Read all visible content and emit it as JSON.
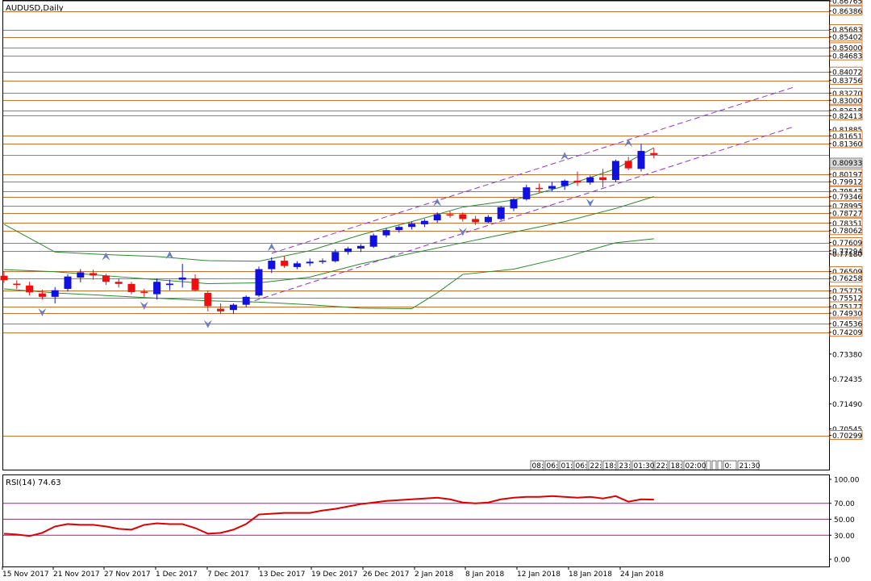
{
  "window": {
    "title": "AUDUSD,Daily"
  },
  "colors": {
    "bull": "#1010e0",
    "bear": "#ee1010",
    "level": "#c87030",
    "channel": "#9933cc",
    "bands": "#2a8a2a",
    "rsi": "#dd0000",
    "rsi_levels": "#ee10c0"
  },
  "time_markers": [
    "08:",
    "06:",
    "01:",
    "06:",
    "22:",
    "18:",
    "23:",
    "01:30",
    "22:",
    "18:",
    "02:00",
    "",
    "",
    "",
    "0:",
    "21:30"
  ],
  "chart_data": [
    {
      "type": "candlestick",
      "title": "AUDUSD,Daily",
      "y_range": [
        0.69,
        0.8677
      ],
      "x_labels": [
        "15 Nov 2017",
        "21 Nov 2017",
        "27 Nov 2017",
        "1 Dec 2017",
        "7 Dec 2017",
        "13 Dec 2017",
        "19 Dec 2017",
        "26 Dec 2017",
        "2 Jan 2018",
        "8 Jan 2018",
        "12 Jan 2018",
        "18 Jan 2018",
        "24 Jan 2018"
      ],
      "price_labels": [
        "0.86765",
        "0.86386",
        "0.85683",
        "0.85402",
        "0.85000",
        "0.84683",
        "0.84072",
        "0.83756",
        "0.83270",
        "0.83000",
        "0.82618",
        "0.82413",
        "0.81885",
        "0.81651",
        "0.81360",
        "0.80197",
        "0.79912",
        "0.79547",
        "0.79346",
        "0.78995",
        "0.78727",
        "0.78351",
        "0.78062",
        "0.77609",
        "0.77294",
        "0.77180",
        "0.76509",
        "0.76258",
        "0.75775",
        "0.75512",
        "0.75177",
        "0.74930",
        "0.74536",
        "0.74209",
        "0.73380",
        "0.72435",
        "0.71490",
        "0.70545",
        "0.70299"
      ],
      "level_values": [
        0.86765,
        0.86386,
        0.85683,
        0.85402,
        0.85,
        0.84683,
        0.84072,
        0.83756,
        0.8327,
        0.83,
        0.82618,
        0.82413,
        0.81651,
        0.8136,
        0.80197,
        0.79912,
        0.79547,
        0.79346,
        0.78995,
        0.78727,
        0.78351,
        0.78062,
        0.77609,
        0.77294,
        0.76509,
        0.76258,
        0.75775,
        0.75512,
        0.75177,
        0.7493,
        0.74536,
        0.74209,
        0.70299
      ],
      "current_price": "0.80933",
      "current_value": 0.80933,
      "candles": [
        {
          "o": 0.7635,
          "h": 0.7652,
          "l": 0.7608,
          "c": 0.7618
        },
        {
          "o": 0.7605,
          "h": 0.7618,
          "l": 0.7585,
          "c": 0.7602
        },
        {
          "o": 0.7598,
          "h": 0.7612,
          "l": 0.756,
          "c": 0.7572
        },
        {
          "o": 0.7568,
          "h": 0.7582,
          "l": 0.7545,
          "c": 0.7555
        },
        {
          "o": 0.7555,
          "h": 0.7592,
          "l": 0.753,
          "c": 0.758
        },
        {
          "o": 0.7585,
          "h": 0.764,
          "l": 0.7575,
          "c": 0.7632
        },
        {
          "o": 0.7628,
          "h": 0.766,
          "l": 0.761,
          "c": 0.7648
        },
        {
          "o": 0.7645,
          "h": 0.7658,
          "l": 0.762,
          "c": 0.7636
        },
        {
          "o": 0.7636,
          "h": 0.7642,
          "l": 0.76,
          "c": 0.7612
        },
        {
          "o": 0.7612,
          "h": 0.7625,
          "l": 0.759,
          "c": 0.7604
        },
        {
          "o": 0.7604,
          "h": 0.7612,
          "l": 0.7565,
          "c": 0.7573
        },
        {
          "o": 0.7575,
          "h": 0.7585,
          "l": 0.7555,
          "c": 0.757
        },
        {
          "o": 0.7565,
          "h": 0.7625,
          "l": 0.7545,
          "c": 0.7612
        },
        {
          "o": 0.76,
          "h": 0.762,
          "l": 0.758,
          "c": 0.7605
        },
        {
          "o": 0.762,
          "h": 0.768,
          "l": 0.759,
          "c": 0.7628
        },
        {
          "o": 0.7625,
          "h": 0.764,
          "l": 0.7575,
          "c": 0.758
        },
        {
          "o": 0.757,
          "h": 0.758,
          "l": 0.75,
          "c": 0.752
        },
        {
          "o": 0.751,
          "h": 0.753,
          "l": 0.749,
          "c": 0.75
        },
        {
          "o": 0.7505,
          "h": 0.753,
          "l": 0.749,
          "c": 0.7525
        },
        {
          "o": 0.7525,
          "h": 0.756,
          "l": 0.7515,
          "c": 0.7555
        },
        {
          "o": 0.756,
          "h": 0.767,
          "l": 0.7555,
          "c": 0.766
        },
        {
          "o": 0.766,
          "h": 0.7705,
          "l": 0.7645,
          "c": 0.7692
        },
        {
          "o": 0.7692,
          "h": 0.771,
          "l": 0.7665,
          "c": 0.7672
        },
        {
          "o": 0.7668,
          "h": 0.769,
          "l": 0.766,
          "c": 0.7682
        },
        {
          "o": 0.7682,
          "h": 0.77,
          "l": 0.7672,
          "c": 0.7688
        },
        {
          "o": 0.7688,
          "h": 0.77,
          "l": 0.768,
          "c": 0.7692
        },
        {
          "o": 0.769,
          "h": 0.7735,
          "l": 0.7685,
          "c": 0.7725
        },
        {
          "o": 0.7725,
          "h": 0.7745,
          "l": 0.7715,
          "c": 0.7738
        },
        {
          "o": 0.7738,
          "h": 0.7755,
          "l": 0.7725,
          "c": 0.7748
        },
        {
          "o": 0.7745,
          "h": 0.7795,
          "l": 0.774,
          "c": 0.7788
        },
        {
          "o": 0.7788,
          "h": 0.7815,
          "l": 0.778,
          "c": 0.7808
        },
        {
          "o": 0.7808,
          "h": 0.7825,
          "l": 0.7798,
          "c": 0.782
        },
        {
          "o": 0.782,
          "h": 0.784,
          "l": 0.781,
          "c": 0.7832
        },
        {
          "o": 0.783,
          "h": 0.785,
          "l": 0.782,
          "c": 0.7843
        },
        {
          "o": 0.7845,
          "h": 0.7875,
          "l": 0.7835,
          "c": 0.7868
        },
        {
          "o": 0.7868,
          "h": 0.788,
          "l": 0.7855,
          "c": 0.7864
        },
        {
          "o": 0.7868,
          "h": 0.7875,
          "l": 0.784,
          "c": 0.785
        },
        {
          "o": 0.785,
          "h": 0.7862,
          "l": 0.7828,
          "c": 0.7838
        },
        {
          "o": 0.7838,
          "h": 0.7865,
          "l": 0.7835,
          "c": 0.7858
        },
        {
          "o": 0.785,
          "h": 0.79,
          "l": 0.7845,
          "c": 0.7895
        },
        {
          "o": 0.789,
          "h": 0.793,
          "l": 0.788,
          "c": 0.7925
        },
        {
          "o": 0.7925,
          "h": 0.798,
          "l": 0.792,
          "c": 0.797
        },
        {
          "o": 0.7968,
          "h": 0.7985,
          "l": 0.795,
          "c": 0.7965
        },
        {
          "o": 0.7965,
          "h": 0.799,
          "l": 0.7955,
          "c": 0.7975
        },
        {
          "o": 0.7975,
          "h": 0.8,
          "l": 0.796,
          "c": 0.7995
        },
        {
          "o": 0.7995,
          "h": 0.803,
          "l": 0.7975,
          "c": 0.7988
        },
        {
          "o": 0.7988,
          "h": 0.8015,
          "l": 0.798,
          "c": 0.8008
        },
        {
          "o": 0.8008,
          "h": 0.804,
          "l": 0.797,
          "c": 0.7998
        },
        {
          "o": 0.7998,
          "h": 0.8075,
          "l": 0.799,
          "c": 0.807
        },
        {
          "o": 0.807,
          "h": 0.8085,
          "l": 0.8035,
          "c": 0.8042
        },
        {
          "o": 0.804,
          "h": 0.8135,
          "l": 0.803,
          "c": 0.8108
        },
        {
          "o": 0.81,
          "h": 0.8118,
          "l": 0.808,
          "c": 0.8093
        }
      ],
      "bands": {
        "upper": [
          [
            0,
            0.783
          ],
          [
            4,
            0.7725
          ],
          [
            8,
            0.7715
          ],
          [
            12,
            0.7708
          ],
          [
            16,
            0.7692
          ],
          [
            20,
            0.769
          ],
          [
            24,
            0.773
          ],
          [
            28,
            0.779
          ],
          [
            32,
            0.784
          ],
          [
            36,
            0.7895
          ],
          [
            40,
            0.7922
          ],
          [
            44,
            0.7975
          ],
          [
            48,
            0.804
          ],
          [
            51,
            0.812
          ]
        ],
        "middle": [
          [
            0,
            0.7658
          ],
          [
            4,
            0.765
          ],
          [
            8,
            0.7635
          ],
          [
            12,
            0.762
          ],
          [
            16,
            0.7605
          ],
          [
            20,
            0.7608
          ],
          [
            24,
            0.763
          ],
          [
            28,
            0.768
          ],
          [
            32,
            0.772
          ],
          [
            36,
            0.776
          ],
          [
            40,
            0.78
          ],
          [
            44,
            0.784
          ],
          [
            48,
            0.789
          ],
          [
            51,
            0.7935
          ]
        ],
        "lower": [
          [
            0,
            0.7585
          ],
          [
            4,
            0.757
          ],
          [
            8,
            0.756
          ],
          [
            12,
            0.755
          ],
          [
            16,
            0.754
          ],
          [
            20,
            0.7535
          ],
          [
            24,
            0.7525
          ],
          [
            28,
            0.7512
          ],
          [
            32,
            0.751
          ],
          [
            34,
            0.757
          ],
          [
            36,
            0.764
          ],
          [
            40,
            0.766
          ],
          [
            44,
            0.7705
          ],
          [
            48,
            0.776
          ],
          [
            51,
            0.7775
          ]
        ]
      },
      "channel": {
        "upper": [
          [
            21,
            0.772
          ],
          [
            62,
            0.835
          ]
        ],
        "lower": [
          [
            19,
            0.753
          ],
          [
            62,
            0.82
          ]
        ]
      },
      "fractals_up": [
        [
          8,
          0.769
        ],
        [
          13,
          0.7695
        ],
        [
          21,
          0.7725
        ],
        [
          34,
          0.7895
        ],
        [
          44,
          0.807
        ],
        [
          49,
          0.812
        ]
      ],
      "fractals_down": [
        [
          3,
          0.7515
        ],
        [
          11,
          0.754
        ],
        [
          16,
          0.747
        ],
        [
          36,
          0.782
        ],
        [
          46,
          0.793
        ]
      ]
    },
    {
      "type": "line",
      "title": "RSI(14) 74.63",
      "y_range": [
        0,
        100
      ],
      "y_ticks": [
        "100.00",
        "70.00",
        "50.00",
        "30.00",
        "0.00"
      ],
      "levels": [
        70,
        50,
        30
      ],
      "values": [
        32,
        31,
        29,
        33,
        41,
        44,
        43,
        43,
        41,
        38,
        37,
        43,
        45,
        44,
        44,
        39,
        32,
        33,
        37,
        44,
        56,
        57,
        58,
        58,
        58,
        61,
        63,
        66,
        69,
        71,
        73,
        74,
        75,
        76,
        77,
        75,
        71,
        70,
        71,
        75,
        77,
        78,
        78,
        79,
        78,
        77,
        78,
        76,
        79,
        72,
        75,
        74.63
      ]
    }
  ]
}
